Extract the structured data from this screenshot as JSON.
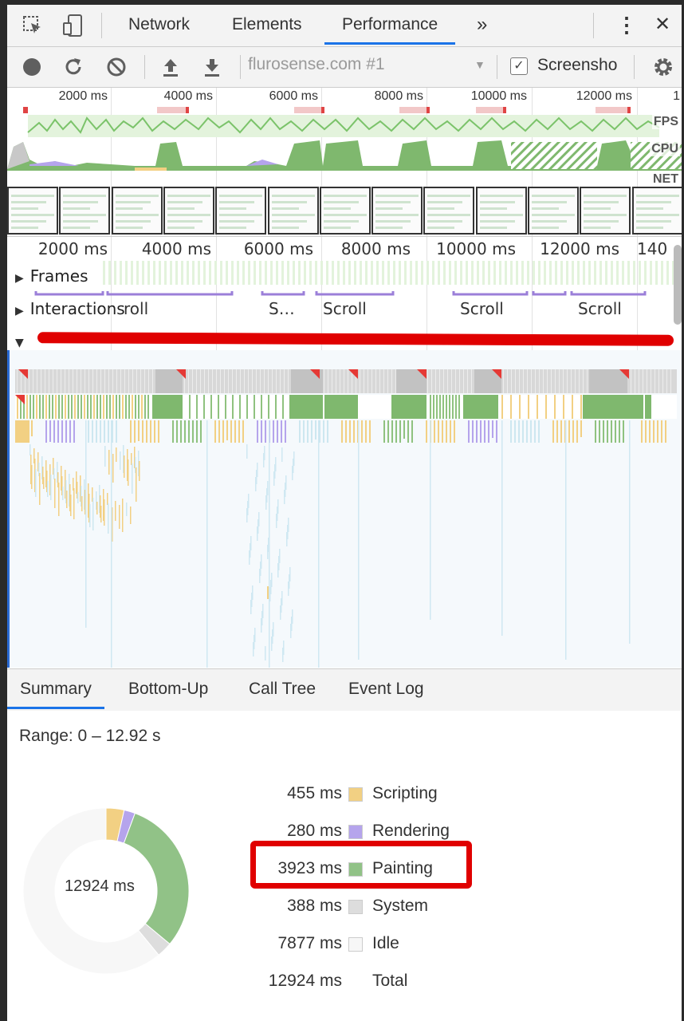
{
  "tabs": {
    "inspect_icon": "inspect-icon",
    "device_icon": "device-toolbar-icon",
    "items": [
      "Network",
      "Elements",
      "Performance"
    ],
    "active": "Performance",
    "more": "»",
    "kebab": "⋮",
    "close": "✕"
  },
  "toolbar": {
    "target": "flurosense.com #1",
    "screenshots_label": "Screensho",
    "screenshots_checked": "✓"
  },
  "overview": {
    "ticks": [
      "2000 ms",
      "4000 ms",
      "6000 ms",
      "8000 ms",
      "10000 ms",
      "12000 ms",
      "1"
    ],
    "tracks": [
      "FPS",
      "CPU",
      "NET"
    ]
  },
  "flame": {
    "ticks": [
      "2000 ms",
      "4000 ms",
      "6000 ms",
      "8000 ms",
      "10000 ms",
      "12000 ms",
      "140"
    ],
    "frames_label": "Frames",
    "interactions_label": "Interactions",
    "interactions": [
      "roll",
      "S…",
      "Scroll",
      "Scroll",
      "Scroll"
    ]
  },
  "bottom_tabs": [
    "Summary",
    "Bottom-Up",
    "Call Tree",
    "Event Log"
  ],
  "summary": {
    "range": "Range: 0 – 12.92 s",
    "total_label": "12924 ms",
    "legend": [
      {
        "value": "455 ms",
        "name": "Scripting",
        "color": "#f2d083"
      },
      {
        "value": "280 ms",
        "name": "Rendering",
        "color": "#b5a4ec"
      },
      {
        "value": "3923 ms",
        "name": "Painting",
        "color": "#91c287"
      },
      {
        "value": "388 ms",
        "name": "System",
        "color": "#dddddd"
      },
      {
        "value": "7877 ms",
        "name": "Idle",
        "color": "#f7f7f7"
      },
      {
        "value": "12924 ms",
        "name": "Total",
        "color": ""
      }
    ]
  }
}
